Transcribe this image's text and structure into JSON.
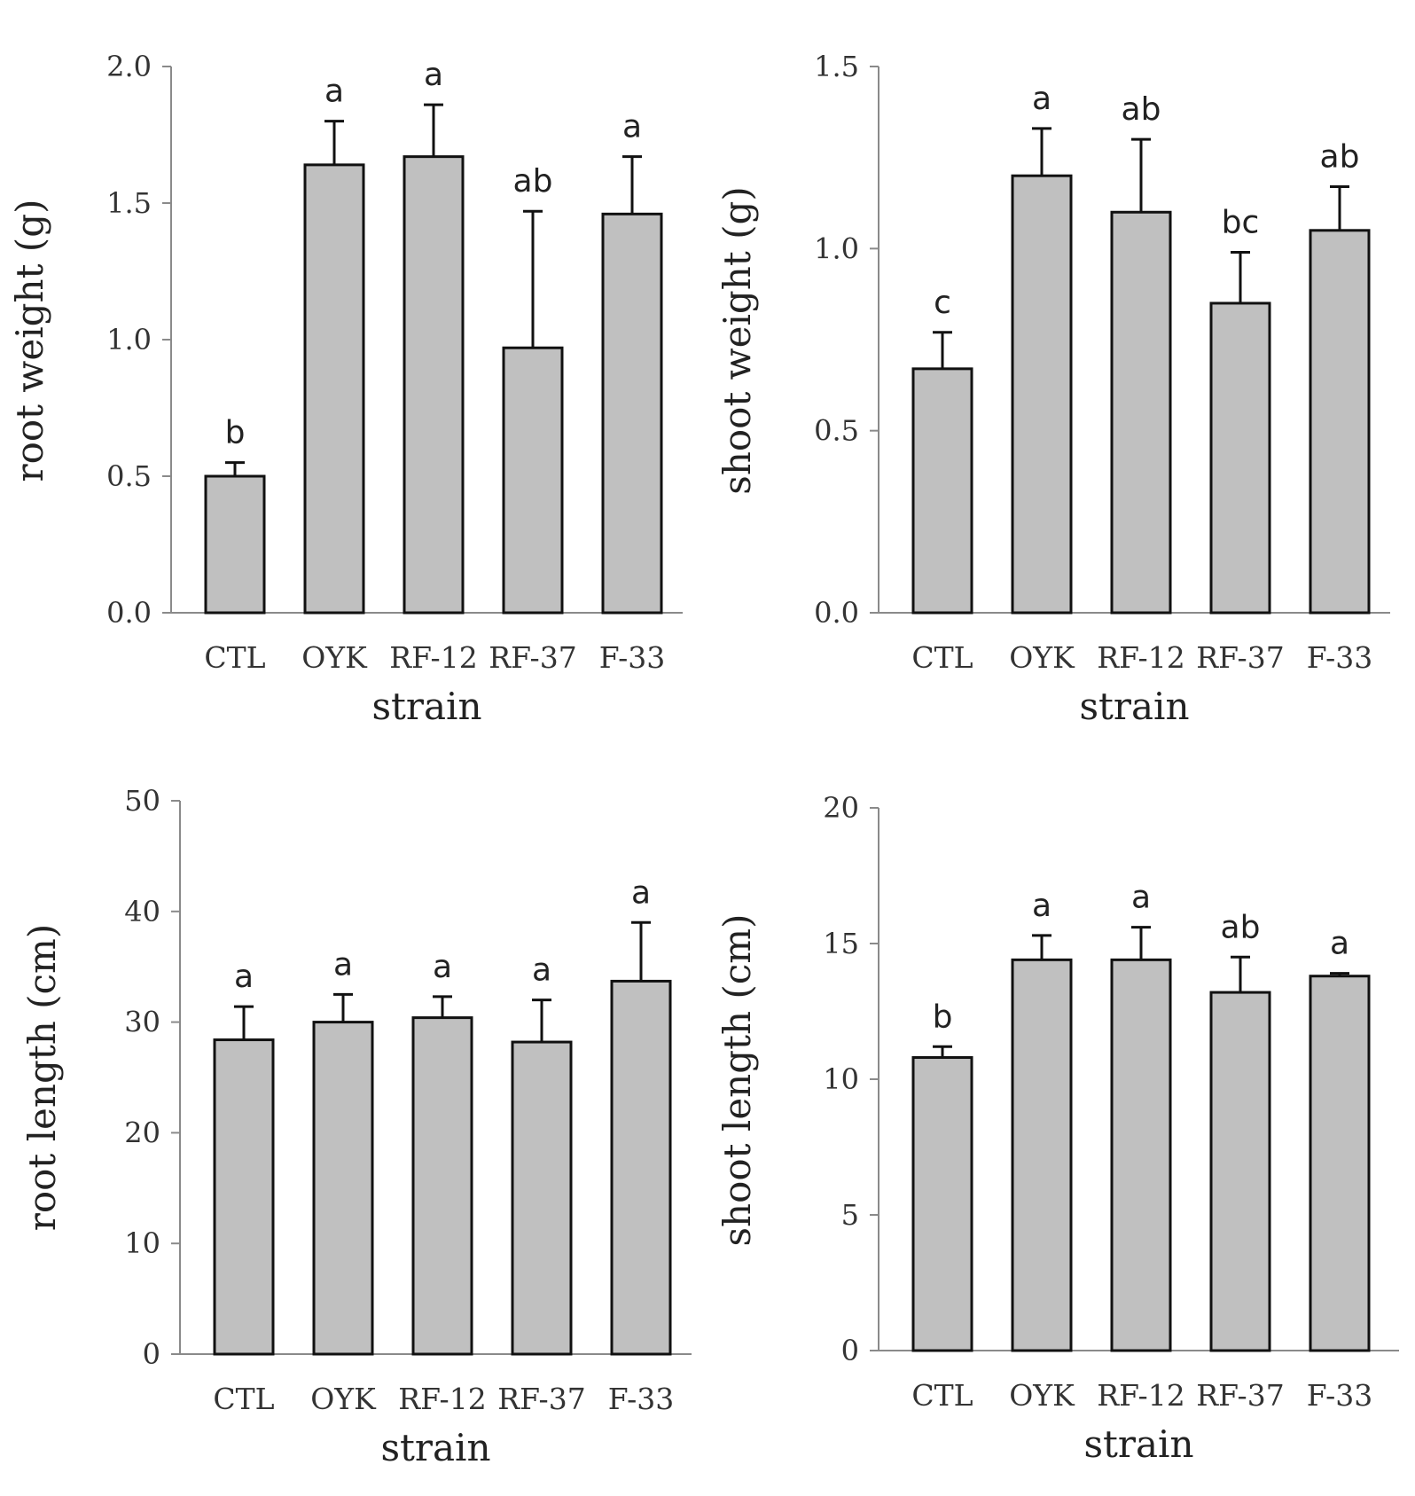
{
  "chart_data": [
    {
      "type": "bar",
      "id": "root-weight",
      "title": "",
      "xlabel": "strain",
      "ylabel": "root weight (g)",
      "categories": [
        "CTL",
        "OYK",
        "RF-12",
        "RF-37",
        "F-33"
      ],
      "values": [
        0.5,
        1.64,
        1.67,
        0.97,
        1.46
      ],
      "errors": [
        0.05,
        0.16,
        0.19,
        0.5,
        0.21
      ],
      "significance": [
        "b",
        "a",
        "a",
        "ab",
        "a"
      ],
      "ylim": [
        0,
        2.0
      ],
      "yticks": [
        0,
        0.5,
        1.0,
        1.5,
        2.0
      ],
      "ytick_labels": [
        "0.0",
        "0.5",
        "1.0",
        "1.5",
        "2.0"
      ],
      "bar_color": "#c0c0c0",
      "grid": false
    },
    {
      "type": "bar",
      "id": "shoot-weight",
      "title": "",
      "xlabel": "strain",
      "ylabel": "shoot weight (g)",
      "categories": [
        "CTL",
        "OYK",
        "RF-12",
        "RF-37",
        "F-33"
      ],
      "values": [
        0.67,
        1.2,
        1.1,
        0.85,
        1.05
      ],
      "errors": [
        0.1,
        0.13,
        0.2,
        0.14,
        0.12
      ],
      "significance": [
        "c",
        "a",
        "ab",
        "bc",
        "ab"
      ],
      "ylim": [
        0,
        1.5
      ],
      "yticks": [
        0,
        0.5,
        1.0,
        1.5
      ],
      "ytick_labels": [
        "0.0",
        "0.5",
        "1.0",
        "1.5"
      ],
      "bar_color": "#c0c0c0",
      "grid": false
    },
    {
      "type": "bar",
      "id": "root-length",
      "title": "",
      "xlabel": "strain",
      "ylabel": "root length (cm)",
      "categories": [
        "CTL",
        "OYK",
        "RF-12",
        "RF-37",
        "F-33"
      ],
      "values": [
        28.4,
        30.0,
        30.4,
        28.2,
        33.7
      ],
      "errors": [
        3.0,
        2.5,
        1.9,
        3.8,
        5.3
      ],
      "significance": [
        "a",
        "a",
        "a",
        "a",
        "a"
      ],
      "ylim": [
        0,
        50
      ],
      "yticks": [
        0,
        10,
        20,
        30,
        40,
        50
      ],
      "ytick_labels": [
        "0",
        "10",
        "20",
        "30",
        "40",
        "50"
      ],
      "bar_color": "#c0c0c0",
      "grid": false
    },
    {
      "type": "bar",
      "id": "shoot-length",
      "title": "",
      "xlabel": "strain",
      "ylabel": "shoot length (cm)",
      "categories": [
        "CTL",
        "OYK",
        "RF-12",
        "RF-37",
        "F-33"
      ],
      "values": [
        10.8,
        14.4,
        14.4,
        13.2,
        13.8
      ],
      "errors": [
        0.4,
        0.9,
        1.2,
        1.3,
        0.1
      ],
      "significance": [
        "b",
        "a",
        "a",
        "ab",
        "a"
      ],
      "ylim": [
        0,
        20
      ],
      "yticks": [
        0,
        5,
        10,
        15,
        20
      ],
      "ytick_labels": [
        "0",
        "5",
        "10",
        "15",
        "20"
      ],
      "bar_color": "#c0c0c0",
      "grid": false
    }
  ]
}
